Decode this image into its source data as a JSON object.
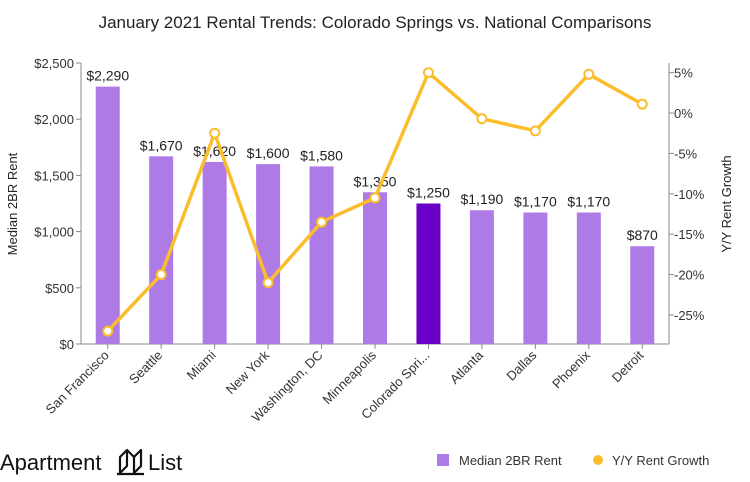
{
  "chart_data": {
    "type": "bar",
    "title": "January 2021 Rental Trends: Colorado Springs vs. National Comparisons",
    "categories": [
      "San Francisco",
      "Seattle",
      "Miami",
      "New York",
      "Washington, DC",
      "Minneapolis",
      "Colorado Spri...",
      "Atlanta",
      "Dallas",
      "Phoenix",
      "Detroit"
    ],
    "series": [
      {
        "name": "Median 2BR Rent",
        "type": "bar",
        "axis": "left",
        "values": [
          2290,
          1670,
          1620,
          1600,
          1580,
          1350,
          1250,
          1190,
          1170,
          1170,
          870
        ],
        "labels": [
          "$2,290",
          "$1,670",
          "$1,620",
          "$1,600",
          "$1,580",
          "$1,350",
          "$1,250",
          "$1,190",
          "$1,170",
          "$1,170",
          "$870"
        ],
        "highlight_index": 6
      },
      {
        "name": "Y/Y Rent Growth",
        "type": "line",
        "axis": "right",
        "values": [
          -27.0,
          -20.0,
          -2.5,
          -21.0,
          -13.5,
          -10.5,
          5.0,
          -0.7,
          -2.2,
          4.8,
          1.1
        ]
      }
    ],
    "ylabel": "Median 2BR Rent",
    "y2label": "Y/Y Rent Growth",
    "ylim": [
      0,
      2500
    ],
    "y_ticks": [
      "$0",
      "$500",
      "$1,000",
      "$1,500",
      "$2,000",
      "$2,500"
    ],
    "y2lim": [
      -28.6,
      6.2
    ],
    "y2_tick_values": [
      -25,
      -20,
      -15,
      -10,
      -5,
      0,
      5
    ],
    "y2_ticks": [
      "-25%",
      "-20%",
      "-15%",
      "-10%",
      "-5%",
      "0%",
      "5%"
    ],
    "legend": [
      "Median 2BR Rent",
      "Y/Y Rent Growth"
    ],
    "legend_position": "bottom-right"
  },
  "brand": {
    "name_left": "Apartment",
    "name_right": "List"
  },
  "colors": {
    "bar": "#ae7be6",
    "bar_highlight": "#6a00c8",
    "line": "#fbbd2c",
    "marker_fill": "#ffffff",
    "axis": "#888888"
  }
}
